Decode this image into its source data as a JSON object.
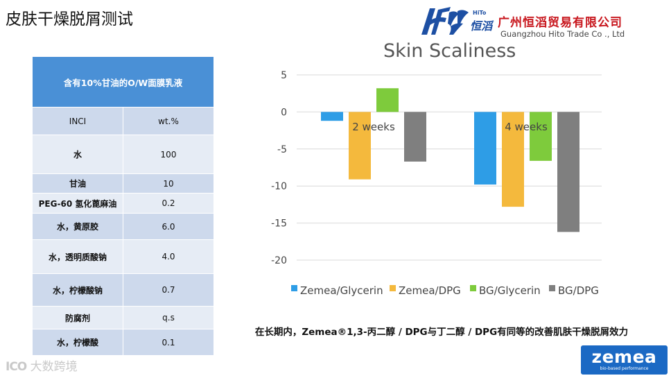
{
  "page_title": "皮肤干燥脱屑测试",
  "logo": {
    "hito": "HiTo",
    "hanzi": "恒滔",
    "company_cn": "广州恒滔贸易有限公司",
    "company_en": "Guangzhou Hito Trade Co ., Ltd"
  },
  "table": {
    "header": "含有10%甘油的O/W面膜乳液",
    "rows": [
      {
        "inci": "INCI",
        "wt": "wt.%"
      },
      {
        "inci": "水",
        "wt": "100"
      },
      {
        "inci": "甘油",
        "wt": "10"
      },
      {
        "inci": "PEG-60 氢化蓖麻油",
        "wt": "0.2"
      },
      {
        "inci": "水，黄原胶",
        "wt": "6.0"
      },
      {
        "inci": "水，透明质酸钠",
        "wt": "4.0"
      },
      {
        "inci": "水，柠檬酸钠",
        "wt": "0.7"
      },
      {
        "inci": "防腐剂",
        "wt": "q.s"
      },
      {
        "inci": "水，柠檬酸",
        "wt": "0.1"
      }
    ]
  },
  "chart_data": {
    "type": "bar",
    "title": "Skin Scaliness",
    "categories": [
      "2 weeks",
      "4 weeks"
    ],
    "series": [
      {
        "name": "Zemea/Glycerin",
        "values": [
          -1.2,
          -9.8
        ],
        "color": "#2e9de6"
      },
      {
        "name": "Zemea/DPG",
        "values": [
          -9.1,
          -12.8
        ],
        "color": "#f4b93d"
      },
      {
        "name": "BG/Glycerin",
        "values": [
          3.2,
          -6.6
        ],
        "color": "#7ecb3c"
      },
      {
        "name": "BG/DPG",
        "values": [
          -6.7,
          -16.2
        ],
        "color": "#7f7f7f"
      }
    ],
    "ylim": [
      -20,
      5
    ],
    "yticks": [
      "5",
      "0",
      "-5",
      "-10",
      "-15",
      "-20"
    ],
    "grid": true,
    "legend": "bottom"
  },
  "caption": "在长期内，Zemea®1,3-丙二醇 / DPG与丁二醇 / DPG有同等的改善肌肤干燥脱屑效力",
  "zemea_logo": {
    "name": "zemea",
    "tagline": "bio-based performance",
    "color": "#1b69c4"
  },
  "watermark": {
    "icon": "ICO",
    "text": "大数跨境"
  }
}
